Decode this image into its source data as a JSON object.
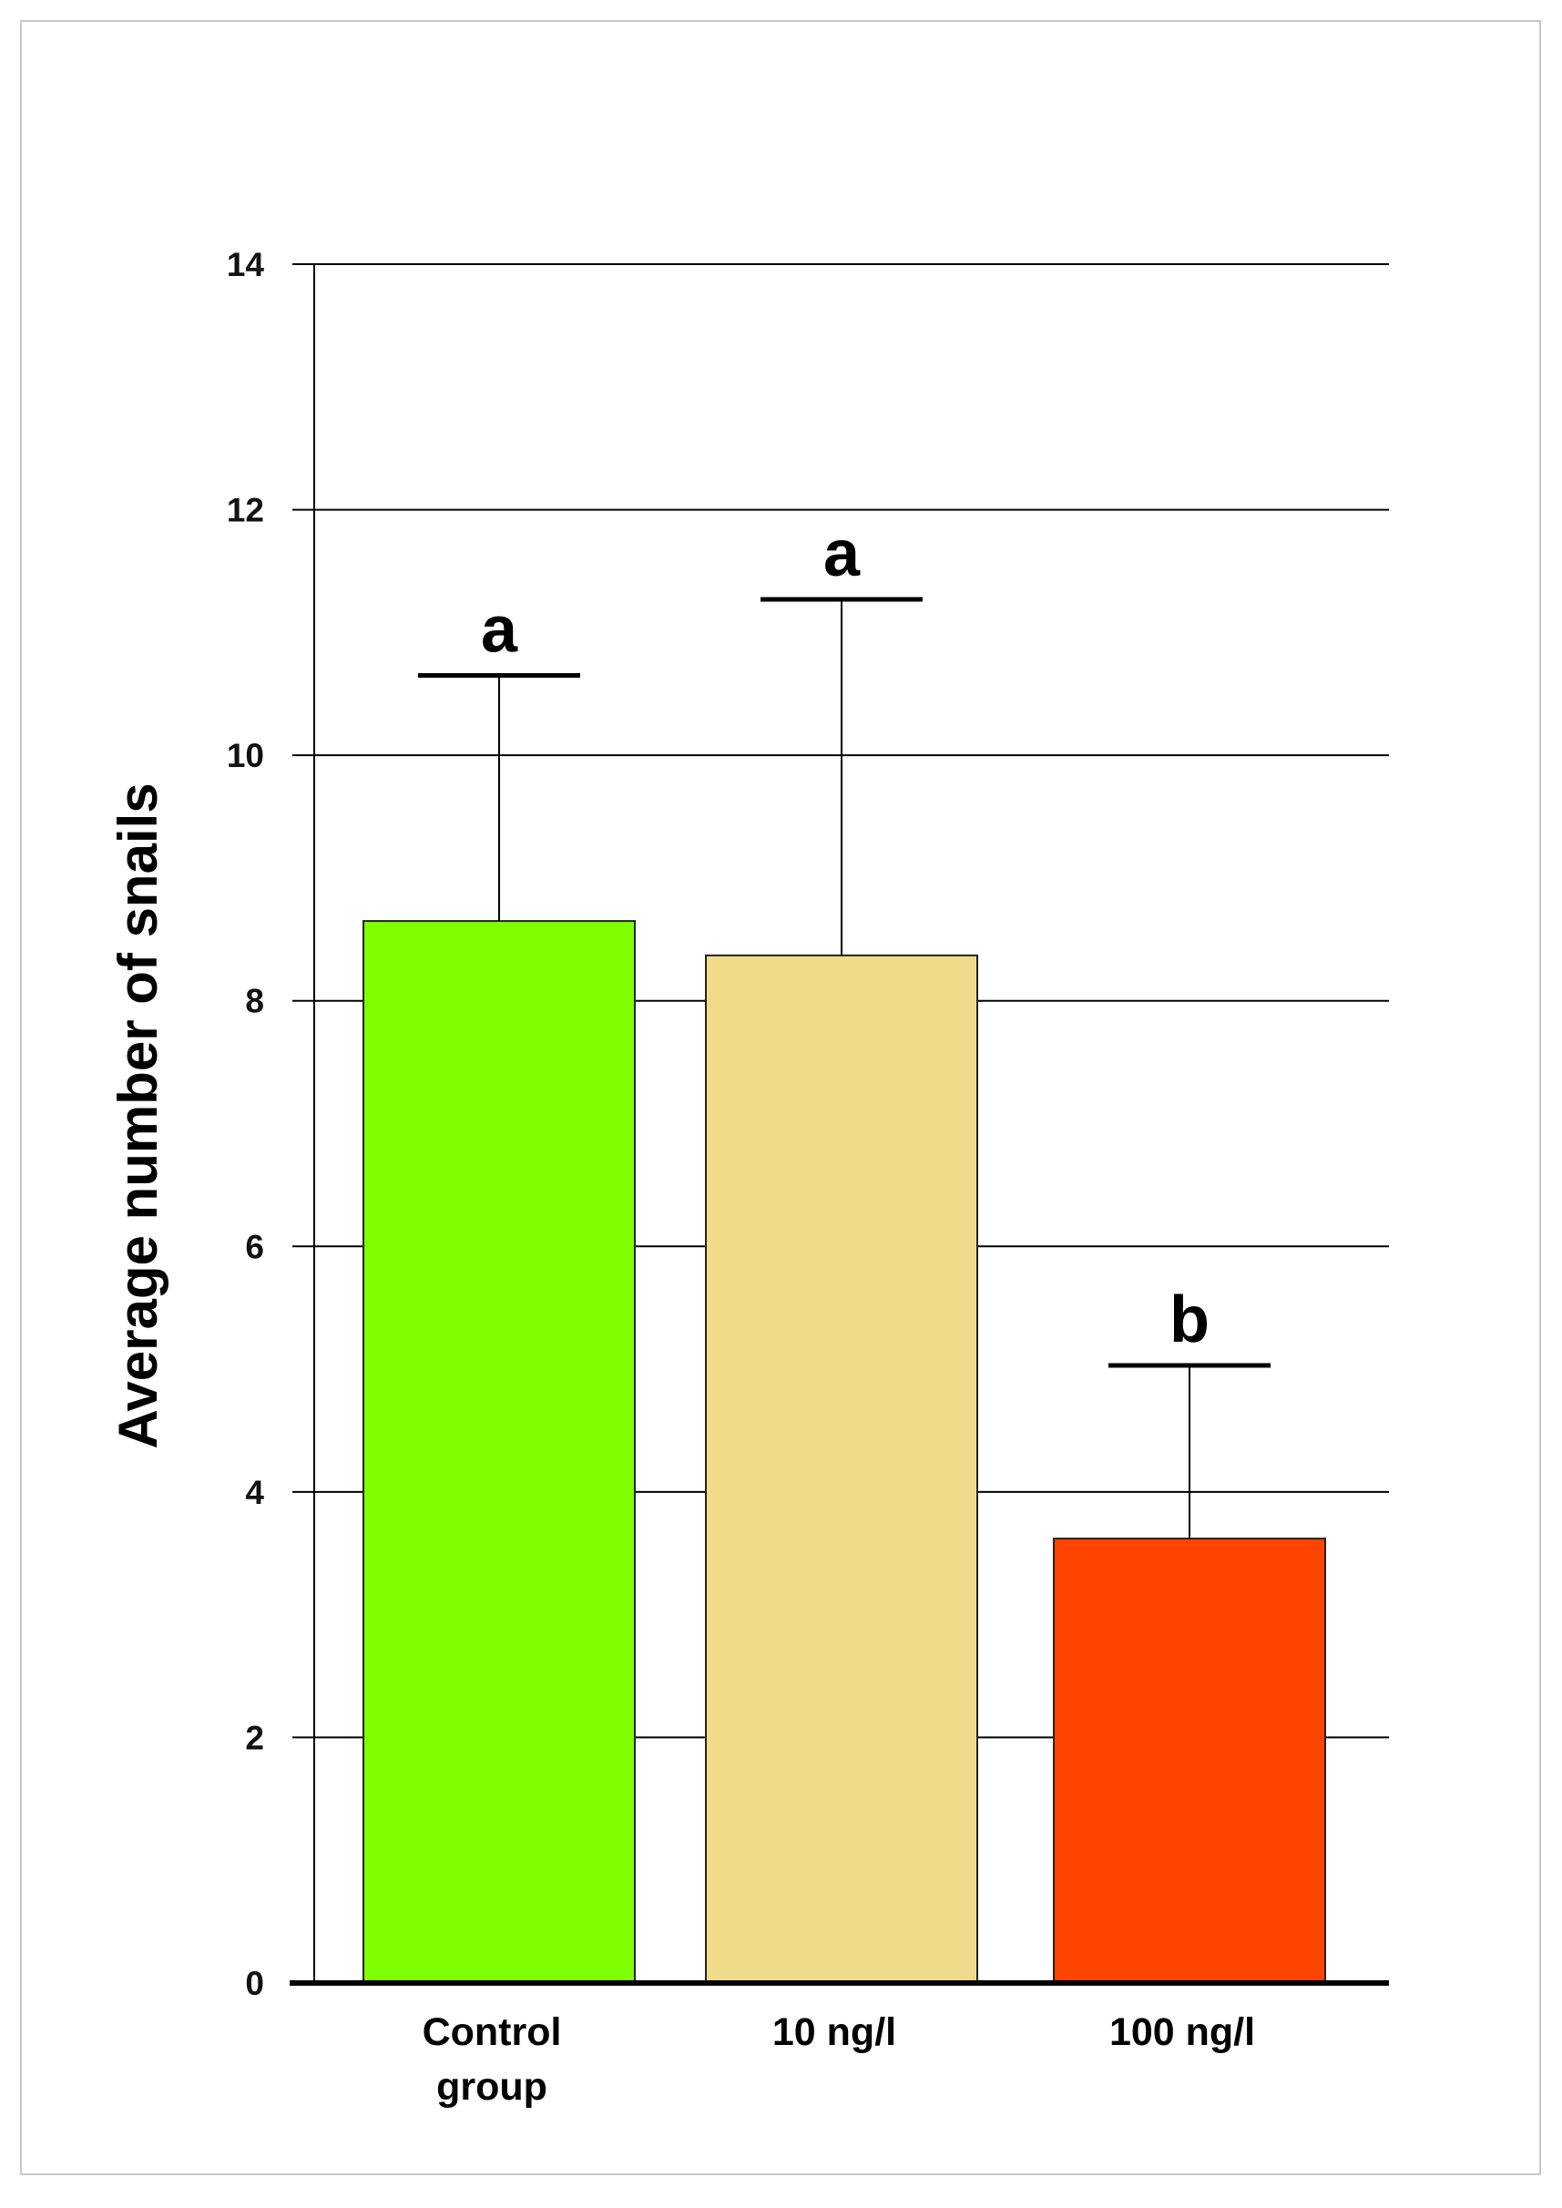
{
  "chart_data": {
    "type": "bar",
    "title": "",
    "xlabel": "",
    "ylabel": "Average number of snails",
    "ylim": [
      0,
      14
    ],
    "yticks": [
      0,
      2,
      4,
      6,
      8,
      10,
      12,
      14
    ],
    "grid": true,
    "categories": [
      [
        "Control",
        "group"
      ],
      [
        "10 ng/l"
      ],
      [
        "100 ng/l"
      ]
    ],
    "values": [
      8.65,
      8.37,
      3.62
    ],
    "error_upper": [
      10.65,
      11.27,
      5.03
    ],
    "significance_letters": [
      "a",
      "a",
      "b"
    ],
    "bar_colors": [
      "#7FFF00",
      "#EEDC8A",
      "#FF4500"
    ]
  }
}
